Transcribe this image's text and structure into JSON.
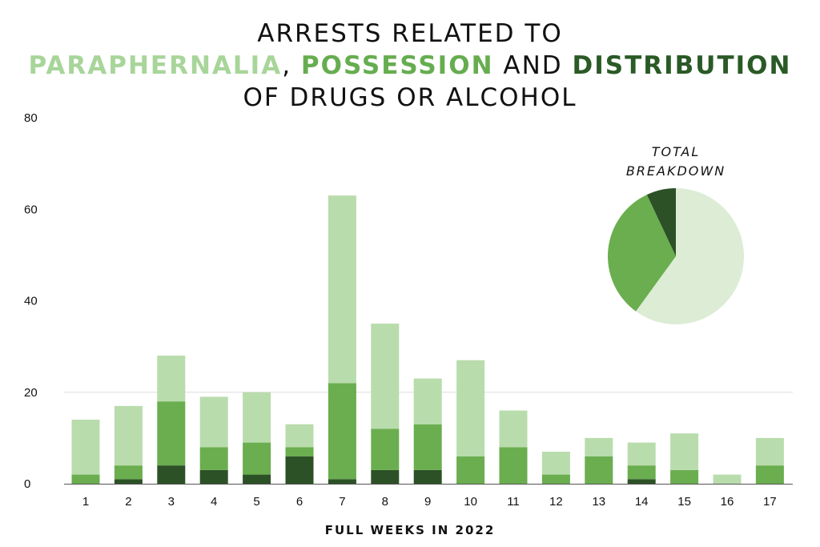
{
  "title": {
    "line1": "ARRESTS RELATED TO",
    "paraphernalia": "PARAPHERNALIA",
    "comma": ",",
    "possession": "POSSESSION",
    "and": "AND",
    "distribution": "DISTRIBUTION",
    "line3": "OF DRUGS OR ALCOHOL"
  },
  "colors": {
    "paraphernalia": "#b9dcac",
    "possession": "#6aae4f",
    "distribution": "#2c5126",
    "pie_paraphernalia": "#dcecd5"
  },
  "chart_data": [
    {
      "type": "bar",
      "stacked": true,
      "categories": [
        "1",
        "2",
        "3",
        "4",
        "5",
        "6",
        "7",
        "8",
        "9",
        "10",
        "11",
        "12",
        "13",
        "14",
        "15",
        "16",
        "17"
      ],
      "series": [
        {
          "name": "DISTRIBUTION",
          "values": [
            0,
            1,
            4,
            3,
            2,
            6,
            1,
            3,
            3,
            0,
            0,
            0,
            0,
            1,
            0,
            0,
            0
          ]
        },
        {
          "name": "POSSESSION",
          "values": [
            2,
            3,
            14,
            5,
            7,
            2,
            21,
            9,
            10,
            6,
            8,
            2,
            6,
            3,
            3,
            0,
            4
          ]
        },
        {
          "name": "PARAPHERNALIA",
          "values": [
            12,
            13,
            10,
            11,
            11,
            5,
            41,
            23,
            10,
            21,
            8,
            5,
            4,
            5,
            8,
            2,
            6
          ]
        }
      ],
      "totals": [
        14,
        17,
        28,
        19,
        20,
        13,
        63,
        35,
        23,
        27,
        16,
        7,
        10,
        9,
        11,
        2,
        10
      ],
      "xlabel": "FULL WEEKS IN 2022",
      "ylabel": "",
      "ylim": [
        0,
        80
      ],
      "yticks": [
        0,
        20,
        40,
        60,
        80
      ],
      "grid": "horizontal at 20"
    },
    {
      "type": "pie",
      "title_line1": "TOTAL",
      "title_line2": "BREAKDOWN",
      "slices": [
        {
          "name": "PARAPHERNALIA",
          "value": 60
        },
        {
          "name": "POSSESSION",
          "value": 33
        },
        {
          "name": "DISTRIBUTION",
          "value": 7
        }
      ]
    }
  ]
}
